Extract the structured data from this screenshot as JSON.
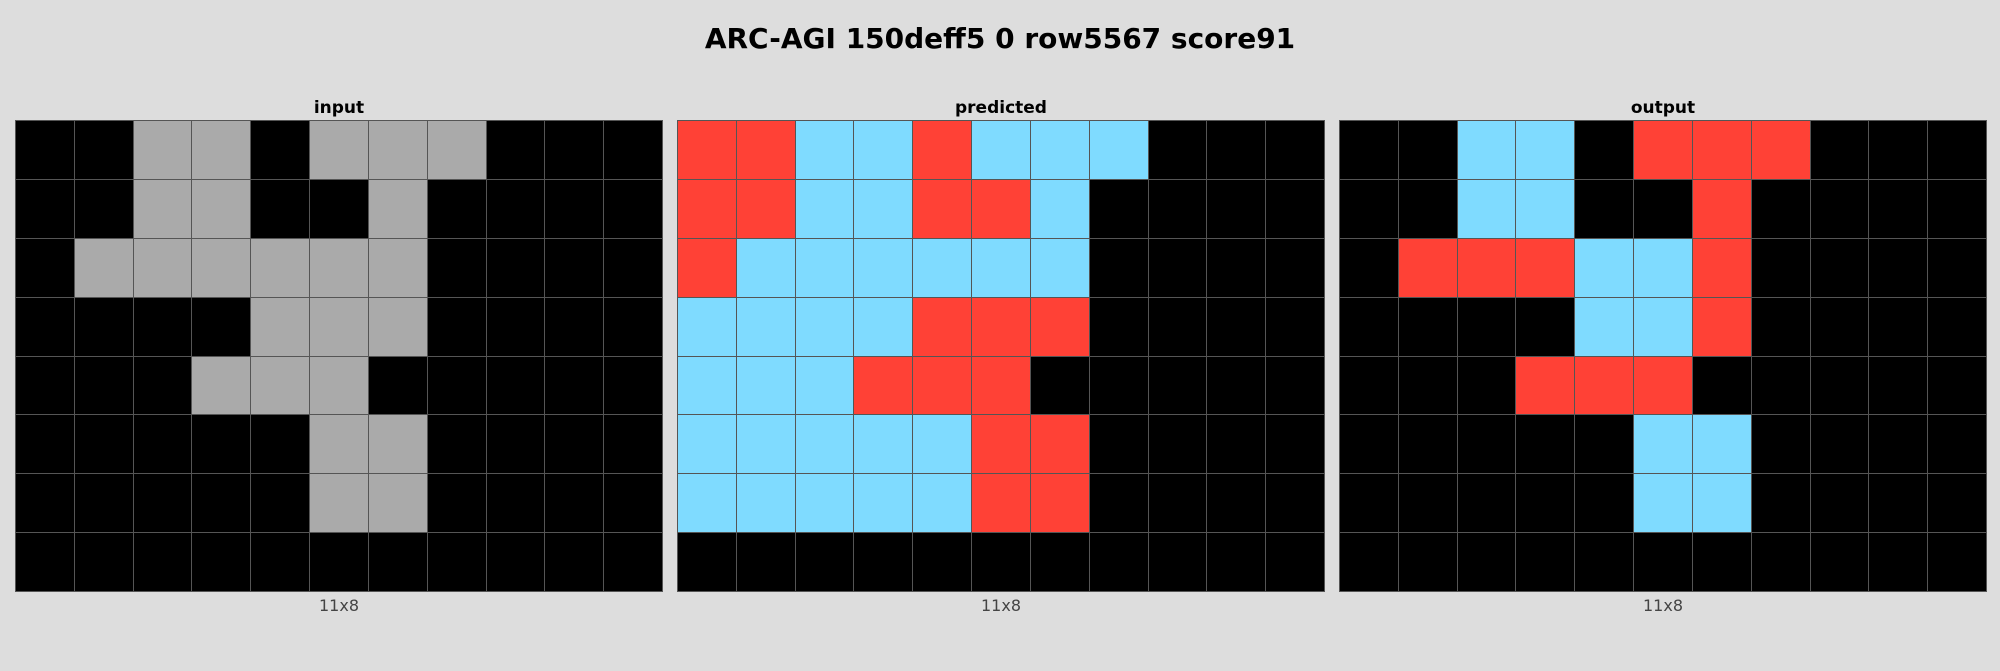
{
  "title": "ARC-AGI 150deff5 0 row5567 score91",
  "palette": {
    "0": "#000000",
    "2": "#ff4136",
    "5": "#aaaaaa",
    "8": "#7fdbff"
  },
  "panels": [
    {
      "label": "input",
      "caption": "11x8",
      "grid": [
        [
          0,
          0,
          5,
          5,
          0,
          5,
          5,
          5,
          0,
          0,
          0
        ],
        [
          0,
          0,
          5,
          5,
          0,
          0,
          5,
          0,
          0,
          0,
          0
        ],
        [
          0,
          5,
          5,
          5,
          5,
          5,
          5,
          0,
          0,
          0,
          0
        ],
        [
          0,
          0,
          0,
          0,
          5,
          5,
          5,
          0,
          0,
          0,
          0
        ],
        [
          0,
          0,
          0,
          5,
          5,
          5,
          0,
          0,
          0,
          0,
          0
        ],
        [
          0,
          0,
          0,
          0,
          0,
          5,
          5,
          0,
          0,
          0,
          0
        ],
        [
          0,
          0,
          0,
          0,
          0,
          5,
          5,
          0,
          0,
          0,
          0
        ],
        [
          0,
          0,
          0,
          0,
          0,
          0,
          0,
          0,
          0,
          0,
          0
        ]
      ]
    },
    {
      "label": "predicted",
      "caption": "11x8",
      "grid": [
        [
          2,
          2,
          8,
          8,
          2,
          8,
          8,
          8,
          0,
          0,
          0
        ],
        [
          2,
          2,
          8,
          8,
          2,
          2,
          8,
          0,
          0,
          0,
          0
        ],
        [
          2,
          8,
          8,
          8,
          8,
          8,
          8,
          0,
          0,
          0,
          0
        ],
        [
          8,
          8,
          8,
          8,
          2,
          2,
          2,
          0,
          0,
          0,
          0
        ],
        [
          8,
          8,
          8,
          2,
          2,
          2,
          0,
          0,
          0,
          0,
          0
        ],
        [
          8,
          8,
          8,
          8,
          8,
          2,
          2,
          0,
          0,
          0,
          0
        ],
        [
          8,
          8,
          8,
          8,
          8,
          2,
          2,
          0,
          0,
          0,
          0
        ],
        [
          0,
          0,
          0,
          0,
          0,
          0,
          0,
          0,
          0,
          0,
          0
        ]
      ]
    },
    {
      "label": "output",
      "caption": "11x8",
      "grid": [
        [
          0,
          0,
          8,
          8,
          0,
          2,
          2,
          2,
          0,
          0,
          0
        ],
        [
          0,
          0,
          8,
          8,
          0,
          0,
          2,
          0,
          0,
          0,
          0
        ],
        [
          0,
          2,
          2,
          2,
          8,
          8,
          2,
          0,
          0,
          0,
          0
        ],
        [
          0,
          0,
          0,
          0,
          8,
          8,
          2,
          0,
          0,
          0,
          0
        ],
        [
          0,
          0,
          0,
          2,
          2,
          2,
          0,
          0,
          0,
          0,
          0
        ],
        [
          0,
          0,
          0,
          0,
          0,
          8,
          8,
          0,
          0,
          0,
          0
        ],
        [
          0,
          0,
          0,
          0,
          0,
          8,
          8,
          0,
          0,
          0,
          0
        ],
        [
          0,
          0,
          0,
          0,
          0,
          0,
          0,
          0,
          0,
          0,
          0
        ]
      ]
    }
  ]
}
